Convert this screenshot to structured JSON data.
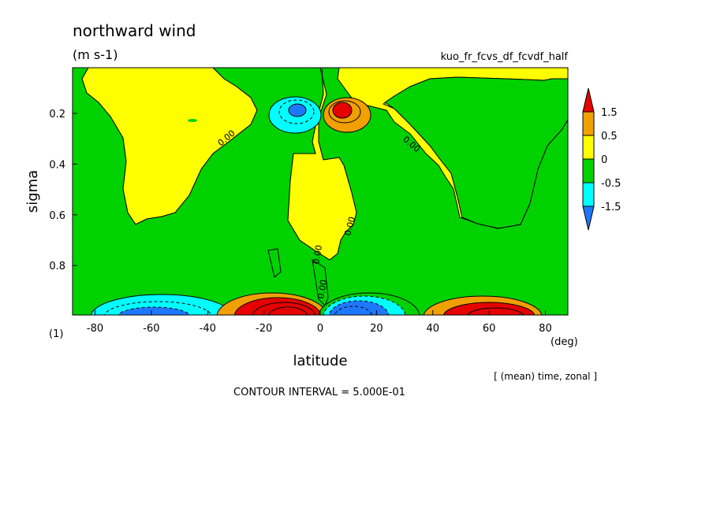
{
  "chart_data": {
    "type": "heatmap",
    "title": "northward wind",
    "units": "(m s-1)",
    "run_name": "kuo_fr_fcvs_df_fcvdf_half",
    "xlabel": "latitude",
    "ylabel": "sigma",
    "x_unit": "(deg)",
    "y_corner_label": "(1)",
    "xlim": [
      -88,
      88
    ],
    "ylim": [
      0.995,
      0.02
    ],
    "x_ticks": [
      "-80",
      "-60",
      "-40",
      "-20",
      "0",
      "20",
      "40",
      "60",
      "80"
    ],
    "y_ticks": [
      "0.2",
      "0.4",
      "0.6",
      "0.8"
    ],
    "colorbar": {
      "labels": [
        "1.5",
        "0.5",
        "0",
        "-0.5",
        "-1.5"
      ],
      "colors": [
        "#e60000",
        "#f0a000",
        "#ffff00",
        "#00d200",
        "#00ffff",
        "#1e78ff"
      ]
    },
    "contour_labels": [
      "0.00",
      "0.00",
      "0.00",
      "0.00",
      "0.00"
    ],
    "contour_interval": "CONTOUR INTERVAL = 5.000E-01",
    "averaging": "[ (mean) time, zonal ]",
    "features": [
      {
        "lat": -10,
        "sigma": 0.19,
        "value": -1.5
      },
      {
        "lat": 8,
        "sigma": 0.19,
        "value": 1.5
      },
      {
        "lat": -55,
        "sigma": 0.98,
        "value": -1.0
      },
      {
        "lat": -12,
        "sigma": 0.97,
        "value": 2.0
      },
      {
        "lat": 12,
        "sigma": 0.97,
        "value": -2.0
      },
      {
        "lat": 58,
        "sigma": 0.98,
        "value": 1.0
      }
    ]
  }
}
